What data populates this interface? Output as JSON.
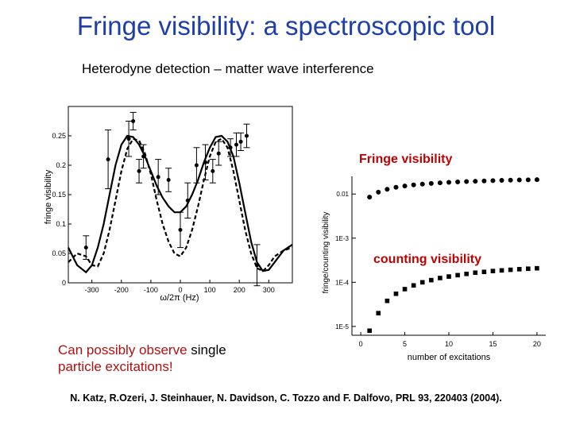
{
  "slide": {
    "title": "Fringe visibility: a spectroscopic tool",
    "subtitle": "Heterodyne detection – matter wave interference",
    "label_fringe": "Fringe visibility",
    "label_counting": "counting visibility",
    "note_red_1": "Can possibly observe",
    "note_black": "single",
    "note_red_2": "particle excitations!",
    "reference": "N. Katz, R.Ozeri, J. Steinhauer, N. Davidson, C. Tozzo and F. Dalfovo, PRL 93, 220403 (2004).",
    "colors": {
      "title": "#1f3fa8",
      "label": "#c00000"
    }
  },
  "chart_data": [
    {
      "type": "scatter",
      "xlabel": "ω/2π (Hz)",
      "ylabel": "fringe visibility",
      "xlim": [
        -380,
        380
      ],
      "ylim": [
        0,
        0.3
      ],
      "xticks": [
        -300,
        -200,
        -100,
        0,
        100,
        200,
        300
      ],
      "yticks": [
        0,
        0.05,
        0.1,
        0.15,
        0.2,
        0.25
      ],
      "ytick_labels": [
        "0",
        "0.05",
        "0.1",
        "0.15",
        "0.2",
        "0.25"
      ],
      "points": [
        {
          "x": -320,
          "y": 0.06,
          "err": 0.02
        },
        {
          "x": -245,
          "y": 0.21,
          "err": 0.05
        },
        {
          "x": -175,
          "y": 0.245,
          "err": 0.03
        },
        {
          "x": -160,
          "y": 0.275,
          "err": 0.015
        },
        {
          "x": -140,
          "y": 0.19,
          "err": 0.02
        },
        {
          "x": -125,
          "y": 0.215,
          "err": 0.02
        },
        {
          "x": -75,
          "y": 0.18,
          "err": 0.03
        },
        {
          "x": -40,
          "y": 0.175,
          "err": 0.02
        },
        {
          "x": 0,
          "y": 0.09,
          "err": 0.03
        },
        {
          "x": 25,
          "y": 0.14,
          "err": 0.03
        },
        {
          "x": 55,
          "y": 0.2,
          "err": 0.03
        },
        {
          "x": 85,
          "y": 0.205,
          "err": 0.03
        },
        {
          "x": 110,
          "y": 0.19,
          "err": 0.02
        },
        {
          "x": 130,
          "y": 0.22,
          "err": 0.02
        },
        {
          "x": 170,
          "y": 0.23,
          "err": 0.015
        },
        {
          "x": 190,
          "y": 0.235,
          "err": 0.02
        },
        {
          "x": 205,
          "y": 0.24,
          "err": 0.015
        },
        {
          "x": 225,
          "y": 0.25,
          "err": 0.02
        },
        {
          "x": 260,
          "y": 0.03,
          "err": 0.035
        }
      ],
      "solid_curve": {
        "x": [
          -380,
          -350,
          -320,
          -300,
          -280,
          -260,
          -240,
          -220,
          -200,
          -180,
          -160,
          -140,
          -120,
          -100,
          -80,
          -60,
          -40,
          -20,
          0,
          20,
          40,
          60,
          80,
          100,
          120,
          140,
          160,
          180,
          200,
          220,
          240,
          260,
          280,
          300,
          320,
          350,
          380
        ],
        "y": [
          0.06,
          0.03,
          0.018,
          0.03,
          0.06,
          0.1,
          0.15,
          0.2,
          0.235,
          0.25,
          0.248,
          0.235,
          0.215,
          0.19,
          0.165,
          0.145,
          0.13,
          0.12,
          0.12,
          0.13,
          0.15,
          0.175,
          0.205,
          0.23,
          0.248,
          0.25,
          0.24,
          0.215,
          0.17,
          0.12,
          0.07,
          0.035,
          0.02,
          0.022,
          0.035,
          0.055,
          0.065
        ]
      },
      "dashed_curve": {
        "x": [
          -380,
          -350,
          -320,
          -300,
          -280,
          -260,
          -240,
          -220,
          -200,
          -180,
          -160,
          -140,
          -120,
          -100,
          -80,
          -60,
          -40,
          -20,
          0,
          20,
          40,
          60,
          80,
          100,
          120,
          140,
          160,
          180,
          200,
          220,
          240,
          260,
          280,
          300,
          320,
          350,
          380
        ],
        "y": [
          0.035,
          0.05,
          0.045,
          0.03,
          0.028,
          0.05,
          0.09,
          0.14,
          0.19,
          0.228,
          0.245,
          0.242,
          0.22,
          0.185,
          0.14,
          0.1,
          0.07,
          0.05,
          0.045,
          0.06,
          0.09,
          0.13,
          0.175,
          0.215,
          0.24,
          0.245,
          0.23,
          0.19,
          0.14,
          0.09,
          0.05,
          0.025,
          0.02,
          0.03,
          0.045,
          0.055,
          0.06
        ]
      }
    },
    {
      "type": "scatter",
      "xlabel": "number of excitations",
      "ylabel": "fringe/counting visibility",
      "xlim": [
        -1,
        21
      ],
      "ylim_log10": [
        -5.2,
        -1.6
      ],
      "xticks": [
        0,
        5,
        10,
        15,
        20
      ],
      "yticks_log10": [
        -2,
        -3,
        -4,
        -5
      ],
      "ytick_labels": [
        "0.01",
        "1E-3",
        "1E-4",
        "1E-5"
      ],
      "fringe_series": {
        "x": [
          1,
          2,
          3,
          4,
          5,
          6,
          7,
          8,
          9,
          10,
          11,
          12,
          13,
          14,
          15,
          16,
          17,
          18,
          19,
          20
        ],
        "y": [
          0.0085,
          0.011,
          0.0128,
          0.0142,
          0.0152,
          0.0161,
          0.0168,
          0.0174,
          0.0179,
          0.0184,
          0.0188,
          0.0192,
          0.0195,
          0.0198,
          0.0201,
          0.0204,
          0.0206,
          0.0208,
          0.021,
          0.0212
        ]
      },
      "counting_series": {
        "x": [
          1,
          2,
          3,
          4,
          5,
          6,
          7,
          8,
          9,
          10,
          11,
          12,
          13,
          14,
          15,
          16,
          17,
          18,
          19,
          20
        ],
        "y": [
          8e-06,
          2e-05,
          3.8e-05,
          5.5e-05,
          7e-05,
          8.5e-05,
          0.0001,
          0.000112,
          0.000125,
          0.000135,
          0.000145,
          0.000155,
          0.000165,
          0.000172,
          0.00018,
          0.000186,
          0.000192,
          0.000198,
          0.000203,
          0.000208
        ]
      }
    }
  ]
}
